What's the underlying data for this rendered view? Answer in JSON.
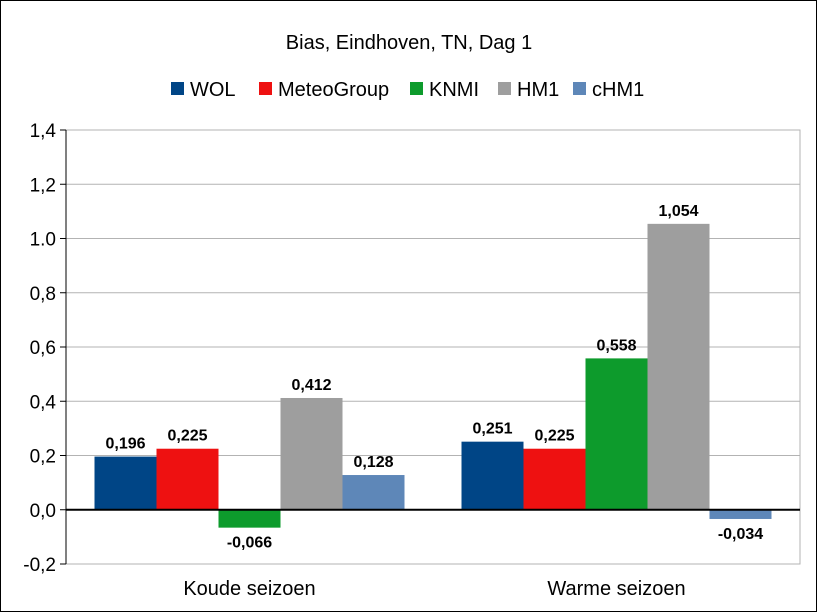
{
  "chart_data": {
    "type": "bar",
    "title": "Bias, Eindhoven, TN, Dag 1",
    "xlabel": "",
    "ylabel": "",
    "categories": [
      "Koude seizoen",
      "Warme seizoen"
    ],
    "series": [
      {
        "name": "WOL",
        "color": "#004586",
        "values": [
          0.196,
          0.251
        ],
        "labels": [
          "0,196",
          "0,251"
        ]
      },
      {
        "name": "MeteoGroup",
        "color": "#ee1111",
        "values": [
          0.225,
          0.225
        ],
        "labels": [
          "0,225",
          "0,225"
        ]
      },
      {
        "name": "KNMI",
        "color": "#0d9b2c",
        "values": [
          -0.066,
          0.558
        ],
        "labels": [
          "-0,066",
          "0,558"
        ]
      },
      {
        "name": "HM1",
        "color": "#9e9e9e",
        "values": [
          0.412,
          1.054
        ],
        "labels": [
          "0,412",
          "1,054"
        ]
      },
      {
        "name": "cHM1",
        "color": "#5e87b8",
        "values": [
          0.128,
          -0.034
        ],
        "labels": [
          "0,128",
          "-0,034"
        ]
      }
    ],
    "ylim": [
      -0.2,
      1.4
    ],
    "yticks": [
      1.4,
      1.2,
      1.0,
      0.8,
      0.6,
      0.4,
      0.2,
      0.0,
      -0.2
    ],
    "ytick_labels": [
      "1,4",
      "1,2",
      "1.0",
      "0,8",
      "0,6",
      "0,4",
      "0,2",
      "0,0",
      "-0,2"
    ],
    "grid": true,
    "legend": "top-center"
  }
}
